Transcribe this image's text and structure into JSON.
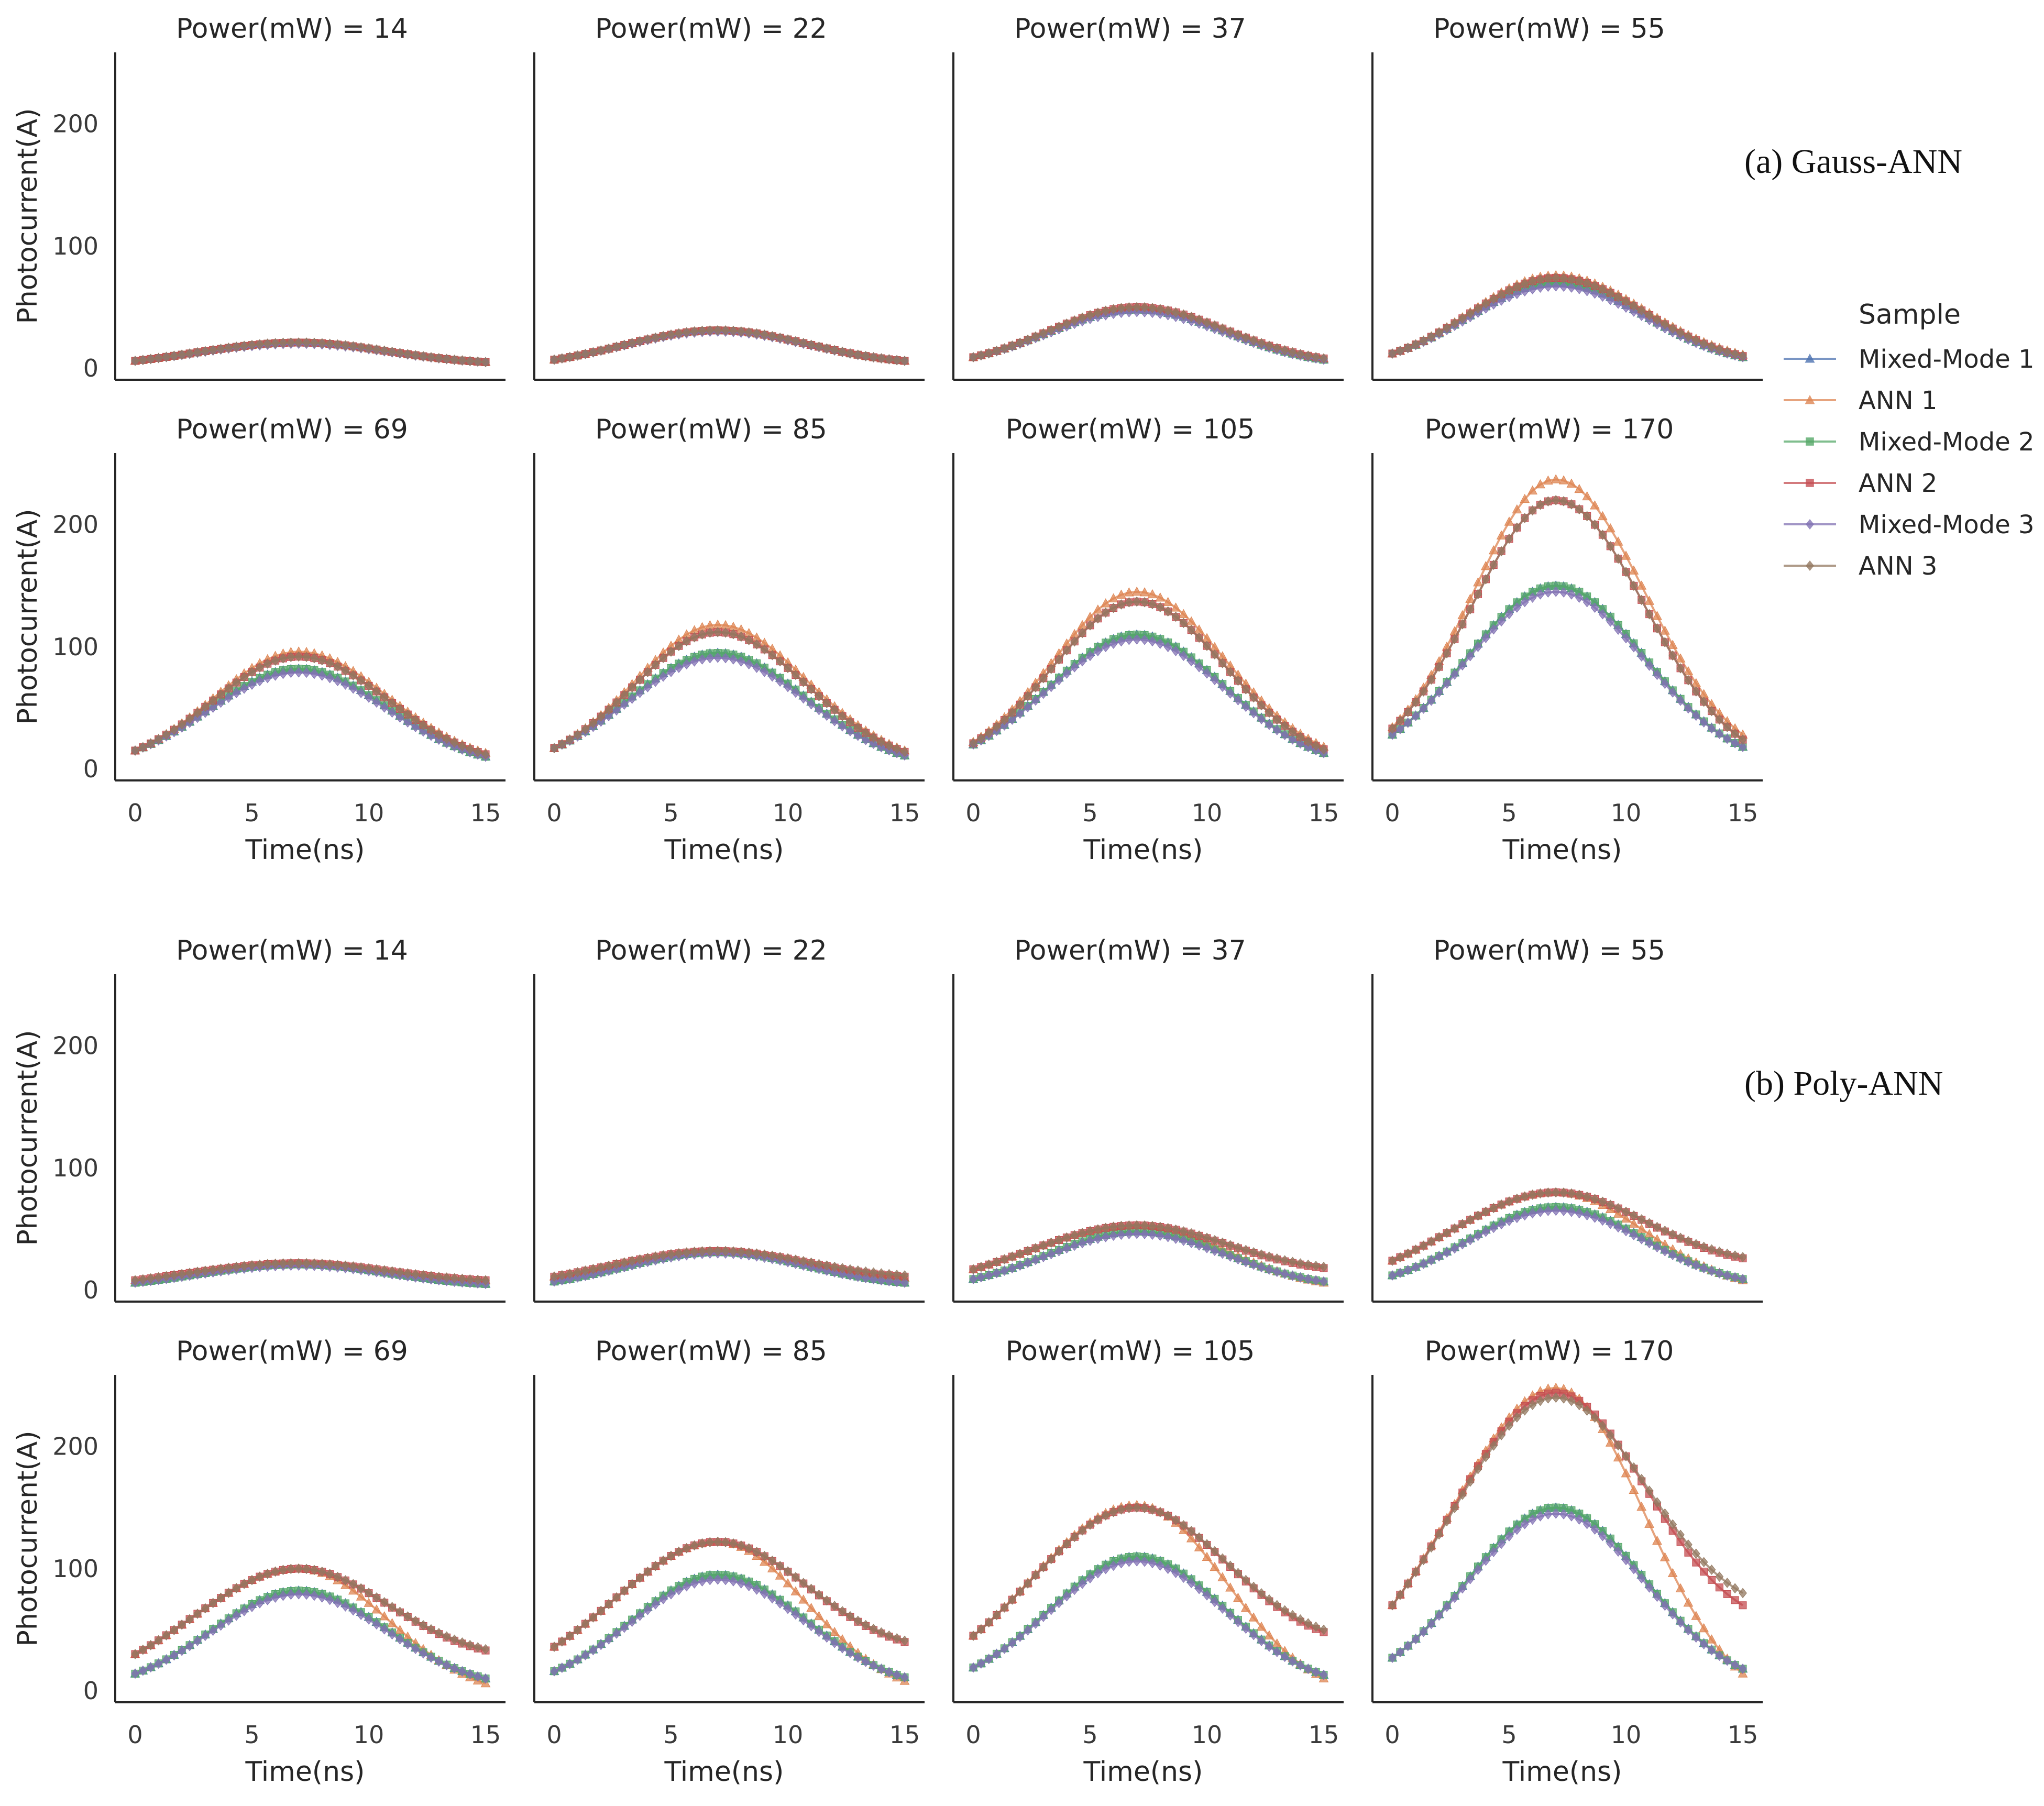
{
  "chart_data": {
    "type": "line",
    "legend": {
      "title": "Sample",
      "placement": "right",
      "entries": [
        {
          "name": "Mixed-Mode 1",
          "color": "#4c72b0",
          "marker": "triangle"
        },
        {
          "name": "ANN 1",
          "color": "#dd8452",
          "marker": "triangle"
        },
        {
          "name": "Mixed-Mode 2",
          "color": "#55a868",
          "marker": "square"
        },
        {
          "name": "ANN 2",
          "color": "#c44e52",
          "marker": "square"
        },
        {
          "name": "Mixed-Mode 3",
          "color": "#8172b3",
          "marker": "diamond"
        },
        {
          "name": "ANN 3",
          "color": "#937860",
          "marker": "diamond"
        }
      ]
    },
    "xlabel": "Time(ns)",
    "ylabel": "Photocurrent(A)",
    "xlim": [
      0,
      15
    ],
    "ylim": [
      0,
      250
    ],
    "xticks": [
      "0",
      "5",
      "10",
      "15"
    ],
    "yticks": [
      "0",
      "100",
      "200"
    ],
    "peak_time": 7,
    "groups": [
      {
        "label": "(a) Gauss-ANN",
        "panels": [
          {
            "title": "Power(mW) = 14",
            "series": [
              {
                "name": "Mixed-Mode 1",
                "start": 6,
                "peak": 21,
                "end": 5
              },
              {
                "name": "ANN 1",
                "start": 6,
                "peak": 21,
                "end": 5
              },
              {
                "name": "Mixed-Mode 2",
                "start": 6,
                "peak": 21,
                "end": 5
              },
              {
                "name": "ANN 2",
                "start": 6,
                "peak": 21,
                "end": 5
              },
              {
                "name": "Mixed-Mode 3",
                "start": 6,
                "peak": 20,
                "end": 5
              },
              {
                "name": "ANN 3",
                "start": 6,
                "peak": 21,
                "end": 5
              }
            ]
          },
          {
            "title": "Power(mW) = 22",
            "series": [
              {
                "name": "Mixed-Mode 1",
                "start": 7,
                "peak": 31,
                "end": 6
              },
              {
                "name": "ANN 1",
                "start": 7,
                "peak": 31,
                "end": 6
              },
              {
                "name": "Mixed-Mode 2",
                "start": 7,
                "peak": 31,
                "end": 6
              },
              {
                "name": "ANN 2",
                "start": 7,
                "peak": 31,
                "end": 6
              },
              {
                "name": "Mixed-Mode 3",
                "start": 7,
                "peak": 30,
                "end": 6
              },
              {
                "name": "ANN 3",
                "start": 7,
                "peak": 31,
                "end": 6
              }
            ]
          },
          {
            "title": "Power(mW) = 37",
            "series": [
              {
                "name": "Mixed-Mode 1",
                "start": 9,
                "peak": 48,
                "end": 7
              },
              {
                "name": "ANN 1",
                "start": 9,
                "peak": 50,
                "end": 8
              },
              {
                "name": "Mixed-Mode 2",
                "start": 9,
                "peak": 48,
                "end": 7
              },
              {
                "name": "ANN 2",
                "start": 9,
                "peak": 50,
                "end": 8
              },
              {
                "name": "Mixed-Mode 3",
                "start": 9,
                "peak": 46,
                "end": 7
              },
              {
                "name": "ANN 3",
                "start": 9,
                "peak": 50,
                "end": 8
              }
            ]
          },
          {
            "title": "Power(mW) = 55",
            "series": [
              {
                "name": "Mixed-Mode 1",
                "start": 12,
                "peak": 70,
                "end": 9
              },
              {
                "name": "ANN 1",
                "start": 12,
                "peak": 76,
                "end": 11
              },
              {
                "name": "Mixed-Mode 2",
                "start": 12,
                "peak": 70,
                "end": 9
              },
              {
                "name": "ANN 2",
                "start": 12,
                "peak": 74,
                "end": 10
              },
              {
                "name": "Mixed-Mode 3",
                "start": 12,
                "peak": 67,
                "end": 9
              },
              {
                "name": "ANN 3",
                "start": 12,
                "peak": 74,
                "end": 10
              }
            ]
          },
          {
            "title": "Power(mW) = 69",
            "series": [
              {
                "name": "Mixed-Mode 1",
                "start": 15,
                "peak": 82,
                "end": 10
              },
              {
                "name": "ANN 1",
                "start": 15,
                "peak": 96,
                "end": 13
              },
              {
                "name": "Mixed-Mode 2",
                "start": 15,
                "peak": 82,
                "end": 10
              },
              {
                "name": "ANN 2",
                "start": 15,
                "peak": 92,
                "end": 12
              },
              {
                "name": "Mixed-Mode 3",
                "start": 15,
                "peak": 79,
                "end": 10
              },
              {
                "name": "ANN 3",
                "start": 15,
                "peak": 92,
                "end": 12
              }
            ]
          },
          {
            "title": "Power(mW) = 85",
            "series": [
              {
                "name": "Mixed-Mode 1",
                "start": 17,
                "peak": 95,
                "end": 11
              },
              {
                "name": "ANN 1",
                "start": 17,
                "peak": 118,
                "end": 15
              },
              {
                "name": "Mixed-Mode 2",
                "start": 17,
                "peak": 95,
                "end": 11
              },
              {
                "name": "ANN 2",
                "start": 17,
                "peak": 112,
                "end": 14
              },
              {
                "name": "Mixed-Mode 3",
                "start": 17,
                "peak": 91,
                "end": 11
              },
              {
                "name": "ANN 3",
                "start": 17,
                "peak": 112,
                "end": 14
              }
            ]
          },
          {
            "title": "Power(mW) = 105",
            "series": [
              {
                "name": "Mixed-Mode 1",
                "start": 20,
                "peak": 110,
                "end": 13
              },
              {
                "name": "ANN 1",
                "start": 22,
                "peak": 145,
                "end": 18
              },
              {
                "name": "Mixed-Mode 2",
                "start": 20,
                "peak": 110,
                "end": 13
              },
              {
                "name": "ANN 2",
                "start": 21,
                "peak": 137,
                "end": 16
              },
              {
                "name": "Mixed-Mode 3",
                "start": 20,
                "peak": 106,
                "end": 13
              },
              {
                "name": "ANN 3",
                "start": 21,
                "peak": 137,
                "end": 16
              }
            ]
          },
          {
            "title": "Power(mW) = 170",
            "series": [
              {
                "name": "Mixed-Mode 1",
                "start": 28,
                "peak": 150,
                "end": 18
              },
              {
                "name": "ANN 1",
                "start": 34,
                "peak": 237,
                "end": 28
              },
              {
                "name": "Mixed-Mode 2",
                "start": 28,
                "peak": 150,
                "end": 18
              },
              {
                "name": "ANN 2",
                "start": 33,
                "peak": 220,
                "end": 24
              },
              {
                "name": "Mixed-Mode 3",
                "start": 28,
                "peak": 145,
                "end": 18
              },
              {
                "name": "ANN 3",
                "start": 33,
                "peak": 220,
                "end": 24
              }
            ]
          }
        ]
      },
      {
        "label": "(b) Poly-ANN",
        "panels": [
          {
            "title": "Power(mW) = 14",
            "series": [
              {
                "name": "Mixed-Mode 1",
                "start": 6,
                "peak": 21,
                "end": 5
              },
              {
                "name": "ANN 1",
                "start": 8,
                "peak": 22,
                "end": 8
              },
              {
                "name": "Mixed-Mode 2",
                "start": 6,
                "peak": 21,
                "end": 5
              },
              {
                "name": "ANN 2",
                "start": 8,
                "peak": 22,
                "end": 8
              },
              {
                "name": "Mixed-Mode 3",
                "start": 6,
                "peak": 20,
                "end": 5
              },
              {
                "name": "ANN 3",
                "start": 8,
                "peak": 22,
                "end": 8
              }
            ]
          },
          {
            "title": "Power(mW) = 22",
            "series": [
              {
                "name": "Mixed-Mode 1",
                "start": 7,
                "peak": 31,
                "end": 6
              },
              {
                "name": "ANN 1",
                "start": 11,
                "peak": 32,
                "end": 10
              },
              {
                "name": "Mixed-Mode 2",
                "start": 7,
                "peak": 31,
                "end": 6
              },
              {
                "name": "ANN 2",
                "start": 11,
                "peak": 32,
                "end": 11
              },
              {
                "name": "Mixed-Mode 3",
                "start": 7,
                "peak": 30,
                "end": 6
              },
              {
                "name": "ANN 3",
                "start": 11,
                "peak": 32,
                "end": 12
              }
            ]
          },
          {
            "title": "Power(mW) = 37",
            "series": [
              {
                "name": "Mixed-Mode 1",
                "start": 9,
                "peak": 48,
                "end": 7
              },
              {
                "name": "ANN 1",
                "start": 17,
                "peak": 53,
                "end": 6
              },
              {
                "name": "Mixed-Mode 2",
                "start": 9,
                "peak": 48,
                "end": 7
              },
              {
                "name": "ANN 2",
                "start": 17,
                "peak": 53,
                "end": 18
              },
              {
                "name": "Mixed-Mode 3",
                "start": 9,
                "peak": 46,
                "end": 7
              },
              {
                "name": "ANN 3",
                "start": 17,
                "peak": 53,
                "end": 19
              }
            ]
          },
          {
            "title": "Power(mW) = 55",
            "series": [
              {
                "name": "Mixed-Mode 1",
                "start": 12,
                "peak": 68,
                "end": 9
              },
              {
                "name": "ANN 1",
                "start": 24,
                "peak": 80,
                "end": 8
              },
              {
                "name": "Mixed-Mode 2",
                "start": 12,
                "peak": 68,
                "end": 9
              },
              {
                "name": "ANN 2",
                "start": 24,
                "peak": 80,
                "end": 26
              },
              {
                "name": "Mixed-Mode 3",
                "start": 12,
                "peak": 65,
                "end": 9
              },
              {
                "name": "ANN 3",
                "start": 24,
                "peak": 80,
                "end": 27
              }
            ]
          },
          {
            "title": "Power(mW) = 69",
            "series": [
              {
                "name": "Mixed-Mode 1",
                "start": 14,
                "peak": 82,
                "end": 10
              },
              {
                "name": "ANN 1",
                "start": 30,
                "peak": 100,
                "end": 6
              },
              {
                "name": "Mixed-Mode 2",
                "start": 14,
                "peak": 82,
                "end": 10
              },
              {
                "name": "ANN 2",
                "start": 30,
                "peak": 100,
                "end": 33
              },
              {
                "name": "Mixed-Mode 3",
                "start": 14,
                "peak": 79,
                "end": 10
              },
              {
                "name": "ANN 3",
                "start": 30,
                "peak": 100,
                "end": 34
              }
            ]
          },
          {
            "title": "Power(mW) = 85",
            "series": [
              {
                "name": "Mixed-Mode 1",
                "start": 16,
                "peak": 95,
                "end": 11
              },
              {
                "name": "ANN 1",
                "start": 36,
                "peak": 122,
                "end": 8
              },
              {
                "name": "Mixed-Mode 2",
                "start": 16,
                "peak": 95,
                "end": 11
              },
              {
                "name": "ANN 2",
                "start": 36,
                "peak": 122,
                "end": 40
              },
              {
                "name": "Mixed-Mode 3",
                "start": 16,
                "peak": 91,
                "end": 11
              },
              {
                "name": "ANN 3",
                "start": 36,
                "peak": 122,
                "end": 41
              }
            ]
          },
          {
            "title": "Power(mW) = 105",
            "series": [
              {
                "name": "Mixed-Mode 1",
                "start": 19,
                "peak": 110,
                "end": 13
              },
              {
                "name": "ANN 1",
                "start": 45,
                "peak": 152,
                "end": 10
              },
              {
                "name": "Mixed-Mode 2",
                "start": 19,
                "peak": 110,
                "end": 13
              },
              {
                "name": "ANN 2",
                "start": 45,
                "peak": 150,
                "end": 48
              },
              {
                "name": "Mixed-Mode 3",
                "start": 19,
                "peak": 106,
                "end": 13
              },
              {
                "name": "ANN 3",
                "start": 45,
                "peak": 150,
                "end": 50
              }
            ]
          },
          {
            "title": "Power(mW) = 170",
            "series": [
              {
                "name": "Mixed-Mode 1",
                "start": 27,
                "peak": 150,
                "end": 18
              },
              {
                "name": "ANN 1",
                "start": 70,
                "peak": 248,
                "end": 14
              },
              {
                "name": "Mixed-Mode 2",
                "start": 27,
                "peak": 150,
                "end": 18
              },
              {
                "name": "ANN 2",
                "start": 70,
                "peak": 244,
                "end": 70
              },
              {
                "name": "Mixed-Mode 3",
                "start": 27,
                "peak": 145,
                "end": 18
              },
              {
                "name": "ANN 3",
                "start": 70,
                "peak": 240,
                "end": 80
              }
            ]
          }
        ]
      }
    ]
  }
}
